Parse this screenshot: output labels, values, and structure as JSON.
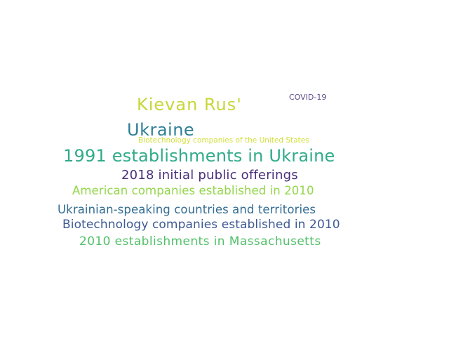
{
  "word_cloud": {
    "words": [
      {
        "text": "Kievan Rus'",
        "color": "#c8d63a"
      },
      {
        "text": "COVID-19",
        "color": "#5a4a8a"
      },
      {
        "text": "Ukraine",
        "color": "#2f7f95"
      },
      {
        "text": "Biotechnology companies of the United States",
        "color": "#d2df3b"
      },
      {
        "text": "1991 establishments in Ukraine",
        "color": "#30ab8a"
      },
      {
        "text": "2018 initial public offerings",
        "color": "#4a2f7a"
      },
      {
        "text": "American companies established in 2010",
        "color": "#93d64a"
      },
      {
        "text": "Ukrainian-speaking countries and territories",
        "color": "#336d93"
      },
      {
        "text": "Biotechnology companies established in 2010",
        "color": "#3d5a94"
      },
      {
        "text": "2010 establishments in Massachusetts",
        "color": "#52c06a"
      }
    ]
  }
}
